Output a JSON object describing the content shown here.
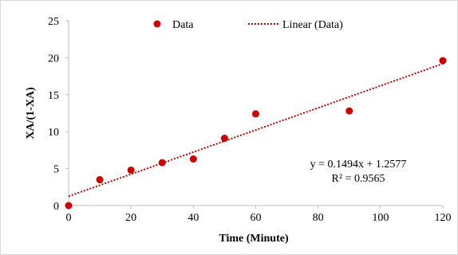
{
  "chart_data": {
    "type": "scatter",
    "title": "",
    "xlabel": "Time (Minute)",
    "ylabel": "XA/(1-XA)",
    "xlim": [
      0,
      120
    ],
    "ylim": [
      0,
      25
    ],
    "xticks": [
      "0",
      "20",
      "40",
      "60",
      "80",
      "100",
      "120"
    ],
    "yticks": [
      "0",
      "5",
      "10",
      "15",
      "20",
      "25"
    ],
    "grid": false,
    "legend_position": "top",
    "series": [
      {
        "name": "Data",
        "marker_color": "#cc0000",
        "x": [
          0,
          10,
          20,
          30,
          40,
          50,
          60,
          90,
          120
        ],
        "y": [
          0.0,
          3.5,
          4.8,
          5.8,
          6.3,
          9.1,
          12.4,
          12.8,
          19.6
        ]
      }
    ],
    "trendline": {
      "name": "Linear (Data)",
      "color": "#c00000",
      "style": "dotted",
      "slope": 0.1494,
      "intercept": 1.2577
    },
    "annotations": {
      "equation": "y = 0.1494x + 1.2577",
      "r_squared": "R² = 0.9565"
    }
  }
}
